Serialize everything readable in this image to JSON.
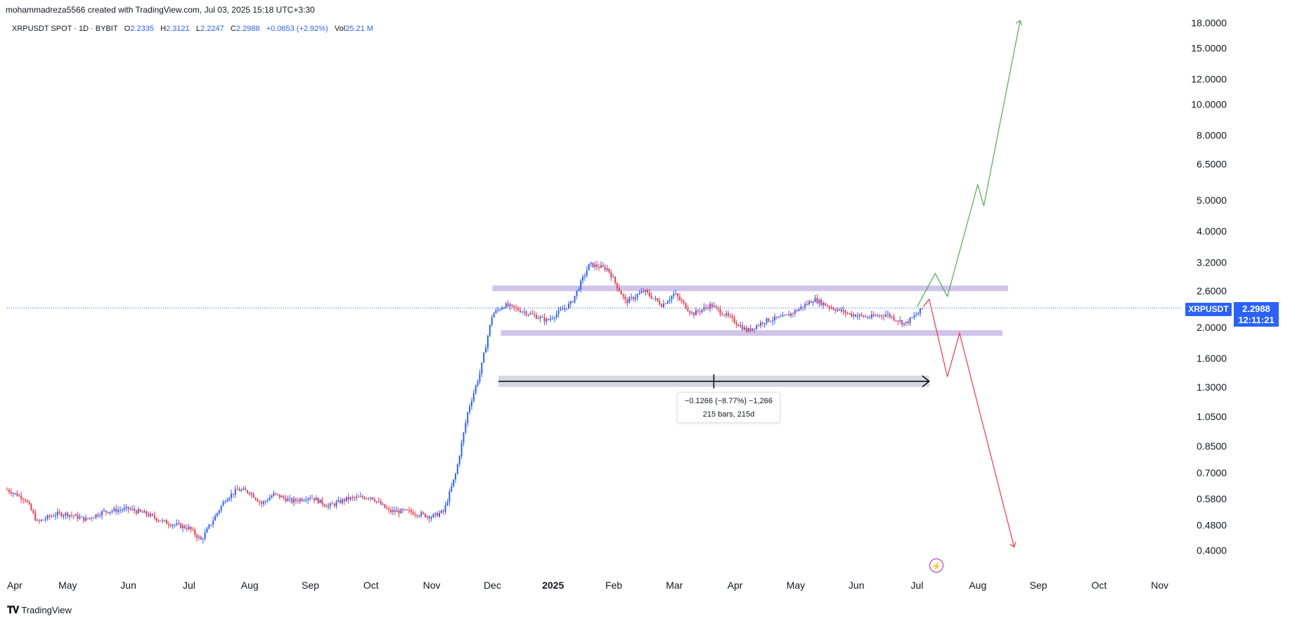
{
  "header": {
    "attribution": "mohammadreza5566 created with TradingView.com, Jul 03, 2025 15:18 UTC+3:30"
  },
  "legend": {
    "symbol": "XRPUSDT SPOT · 1D · BYBIT",
    "o_label": "O",
    "o_value": "2.2335",
    "h_label": "H",
    "h_value": "2.3121",
    "l_label": "L",
    "l_value": "2.2247",
    "c_label": "C",
    "c_value": "2.2988",
    "change": "+0.0653 (+2.92%)",
    "vol_label": "Vol",
    "vol_value": "25.21 M"
  },
  "price_tag": {
    "symbol": "XRPUSDT",
    "price": "2.2988",
    "countdown": "12:11:21"
  },
  "measure": {
    "line1": "−0.1266 (−8.77%) −1,266",
    "line2": "215 bars, 215d"
  },
  "footer": {
    "brand": "TradingView",
    "logo_icon": "tradingview-logo-icon"
  },
  "colors": {
    "up": "#2962ff",
    "down": "#f23645",
    "range_band": "#d1c4e9",
    "bull_projection": "#4caf50",
    "bear_projection": "#f23645",
    "price_tag": "#2962ff",
    "flash_icon": "#9c27b0"
  },
  "chart_data": {
    "type": "candlestick",
    "scale": "log",
    "symbol": "XRPUSDT",
    "y_ticks": [
      "18.0000",
      "15.0000",
      "12.0000",
      "10.0000",
      "8.0000",
      "6.5000",
      "5.0000",
      "4.0000",
      "3.2000",
      "2.6000",
      "2.0000",
      "1.6000",
      "1.3000",
      "1.0500",
      "0.8500",
      "0.7000",
      "0.5800",
      "0.4800",
      "0.4000"
    ],
    "x_ticks": [
      {
        "label": "Apr",
        "month": 0,
        "bold": false
      },
      {
        "label": "May",
        "month": 1,
        "bold": false
      },
      {
        "label": "Jun",
        "month": 2,
        "bold": false
      },
      {
        "label": "Jul",
        "month": 3,
        "bold": false
      },
      {
        "label": "Aug",
        "month": 4,
        "bold": false
      },
      {
        "label": "Sep",
        "month": 5,
        "bold": false
      },
      {
        "label": "Oct",
        "month": 6,
        "bold": false
      },
      {
        "label": "Nov",
        "month": 7,
        "bold": false
      },
      {
        "label": "Dec",
        "month": 8,
        "bold": false
      },
      {
        "label": "2025",
        "month": 9,
        "bold": true
      },
      {
        "label": "Feb",
        "month": 10,
        "bold": false
      },
      {
        "label": "Mar",
        "month": 11,
        "bold": false
      },
      {
        "label": "Apr",
        "month": 12,
        "bold": false
      },
      {
        "label": "May",
        "month": 13,
        "bold": false
      },
      {
        "label": "Jun",
        "month": 14,
        "bold": false
      },
      {
        "label": "Jul",
        "month": 15,
        "bold": false
      },
      {
        "label": "Aug",
        "month": 16,
        "bold": false
      },
      {
        "label": "Sep",
        "month": 17,
        "bold": false
      },
      {
        "label": "Oct",
        "month": 18,
        "bold": false
      },
      {
        "label": "Nov",
        "month": 19,
        "bold": false
      }
    ],
    "price_path": [
      [
        0.0,
        0.62
      ],
      [
        0.3,
        0.58
      ],
      [
        0.5,
        0.49
      ],
      [
        0.8,
        0.52
      ],
      [
        1.0,
        0.52
      ],
      [
        1.3,
        0.5
      ],
      [
        1.6,
        0.53
      ],
      [
        2.0,
        0.54
      ],
      [
        2.3,
        0.52
      ],
      [
        2.6,
        0.49
      ],
      [
        3.0,
        0.47
      ],
      [
        3.2,
        0.43
      ],
      [
        3.4,
        0.5
      ],
      [
        3.6,
        0.58
      ],
      [
        3.8,
        0.62
      ],
      [
        4.0,
        0.61
      ],
      [
        4.2,
        0.56
      ],
      [
        4.4,
        0.6
      ],
      [
        4.7,
        0.57
      ],
      [
        5.0,
        0.59
      ],
      [
        5.3,
        0.55
      ],
      [
        5.6,
        0.58
      ],
      [
        6.0,
        0.59
      ],
      [
        6.3,
        0.53
      ],
      [
        6.6,
        0.53
      ],
      [
        7.0,
        0.51
      ],
      [
        7.2,
        0.53
      ],
      [
        7.4,
        0.7
      ],
      [
        7.6,
        1.1
      ],
      [
        7.8,
        1.45
      ],
      [
        8.0,
        2.2
      ],
      [
        8.2,
        2.35
      ],
      [
        8.5,
        2.25
      ],
      [
        8.9,
        2.1
      ],
      [
        9.3,
        2.38
      ],
      [
        9.6,
        3.15
      ],
      [
        9.9,
        3.05
      ],
      [
        10.2,
        2.4
      ],
      [
        10.5,
        2.6
      ],
      [
        10.8,
        2.35
      ],
      [
        11.0,
        2.55
      ],
      [
        11.3,
        2.2
      ],
      [
        11.6,
        2.35
      ],
      [
        11.9,
        2.15
      ],
      [
        12.2,
        1.95
      ],
      [
        12.5,
        2.1
      ],
      [
        12.8,
        2.15
      ],
      [
        13.0,
        2.25
      ],
      [
        13.3,
        2.45
      ],
      [
        13.6,
        2.3
      ],
      [
        13.9,
        2.2
      ],
      [
        14.2,
        2.15
      ],
      [
        14.5,
        2.2
      ],
      [
        14.8,
        2.05
      ],
      [
        15.0,
        2.2
      ],
      [
        15.1,
        2.3
      ]
    ],
    "range_high": 2.65,
    "range_low": 1.92,
    "range_start_month": 8.0,
    "range_end_month": 16.5,
    "bull_path": [
      [
        15.0,
        2.32
      ],
      [
        15.3,
        2.95
      ],
      [
        15.5,
        2.5
      ],
      [
        16.0,
        5.6
      ],
      [
        16.1,
        4.8
      ],
      [
        16.7,
        18.3
      ]
    ],
    "bear_path": [
      [
        15.1,
        2.32
      ],
      [
        15.2,
        2.45
      ],
      [
        15.5,
        1.4
      ],
      [
        15.7,
        1.92
      ],
      [
        16.6,
        0.41
      ]
    ],
    "measure_price_low": 1.355,
    "measure_month_start": 8.1,
    "measure_month_end": 15.2
  }
}
